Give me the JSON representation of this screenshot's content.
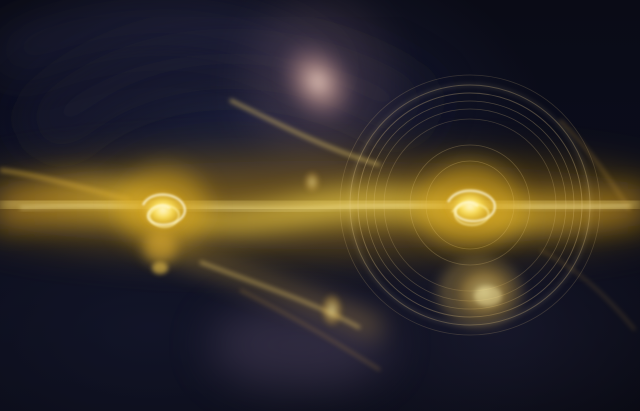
{
  "image": {
    "kind": "abstract-fractal-light-art",
    "palette": {
      "background": "#0a0b16",
      "beam_core": "#ffe680",
      "beam_glow": "#d9a51a",
      "haze": "#f2c9b8",
      "rings": "#e6c98a"
    }
  }
}
